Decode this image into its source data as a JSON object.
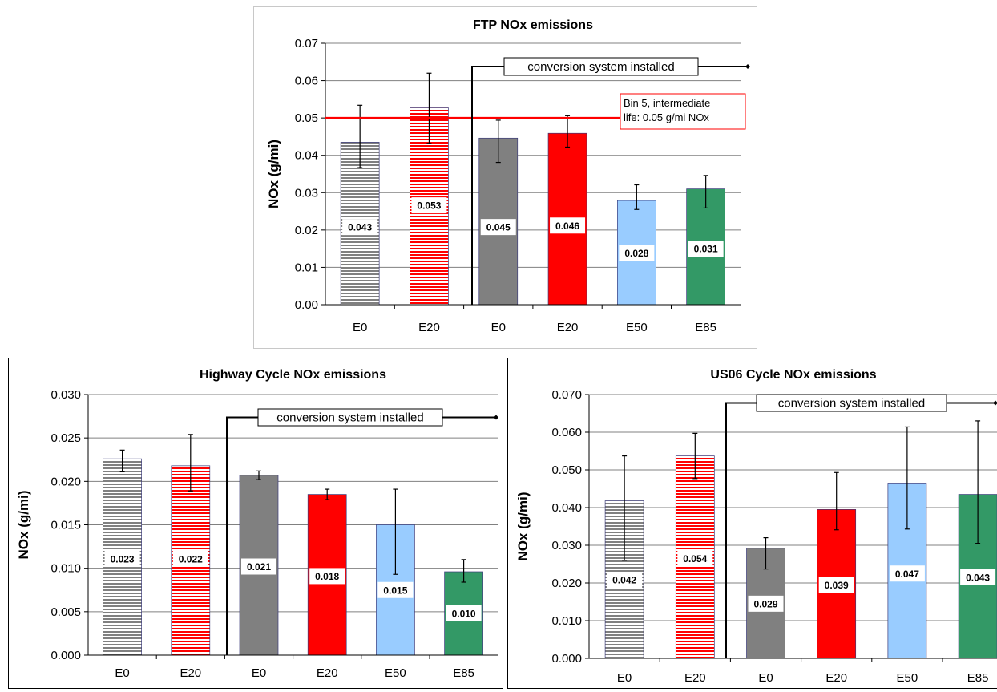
{
  "colors": {
    "gray": "#808080",
    "red": "#ff0000",
    "lightblue": "#99ccff",
    "green": "#339966",
    "stripe_white": "#ffffff",
    "grid": "#808080",
    "limit_line": "#ff0000"
  },
  "chart_data": [
    {
      "type": "bar",
      "title": "FTP NOx emissions",
      "ylabel": "NOx (g/mi)",
      "xlabel": "",
      "ylim": [
        0,
        0.07
      ],
      "yticks": [
        0,
        0.01,
        0.02,
        0.03,
        0.04,
        0.05,
        0.06,
        0.07
      ],
      "ytick_labels": [
        "0.00",
        "0.01",
        "0.02",
        "0.03",
        "0.04",
        "0.05",
        "0.06",
        "0.07"
      ],
      "grid": true,
      "categories": [
        "E0",
        "E20",
        "E0",
        "E20",
        "E50",
        "E85"
      ],
      "values": [
        0.0435,
        0.0527,
        0.0446,
        0.0459,
        0.0279,
        0.031
      ],
      "value_labels": [
        "0.043",
        "0.053",
        "0.045",
        "0.046",
        "0.028",
        "0.031"
      ],
      "errors": [
        [
          0.0367,
          0.0534
        ],
        [
          0.0432,
          0.062
        ],
        [
          0.0381,
          0.0494
        ],
        [
          0.0422,
          0.0506
        ],
        [
          0.0255,
          0.0321
        ],
        [
          0.0259,
          0.0346
        ]
      ],
      "label_y": [
        0.0208,
        0.0266,
        0.0208,
        0.0212,
        0.0138,
        0.015
      ],
      "bar_colors": [
        "gray",
        "red",
        "gray",
        "red",
        "lightblue",
        "green"
      ],
      "bar_patterns": [
        "stripe",
        "stripe",
        "solid",
        "solid",
        "solid",
        "solid"
      ],
      "annotation": "conversion system installed",
      "reference_line": {
        "value": 0.05,
        "label_lines": [
          "Bin 5, intermediate",
          "life: 0.05 g/mi NOx"
        ]
      }
    },
    {
      "type": "bar",
      "title": "Highway Cycle NOx emissions",
      "ylabel": "NOx (g/mi)",
      "xlabel": "",
      "ylim": [
        0,
        0.03
      ],
      "yticks": [
        0,
        0.005,
        0.01,
        0.015,
        0.02,
        0.025,
        0.03
      ],
      "ytick_labels": [
        "0.000",
        "0.005",
        "0.010",
        "0.015",
        "0.020",
        "0.025",
        "0.030"
      ],
      "grid": true,
      "categories": [
        "E0",
        "E20",
        "E0",
        "E20",
        "E50",
        "E85"
      ],
      "values": [
        0.0226,
        0.0218,
        0.0207,
        0.0185,
        0.015,
        0.0096
      ],
      "value_labels": [
        "0.023",
        "0.022",
        "0.021",
        "0.018",
        "0.015",
        "0.010"
      ],
      "errors": [
        [
          0.0211,
          0.0236
        ],
        [
          0.0189,
          0.0254
        ],
        [
          0.0202,
          0.0212
        ],
        [
          0.0179,
          0.0191
        ],
        [
          0.0093,
          0.0191
        ],
        [
          0.0084,
          0.011
        ]
      ],
      "label_y": [
        0.0111,
        0.0111,
        0.0102,
        0.0091,
        0.0075,
        0.0048
      ],
      "bar_colors": [
        "gray",
        "red",
        "gray",
        "red",
        "lightblue",
        "green"
      ],
      "bar_patterns": [
        "stripe",
        "stripe",
        "solid",
        "solid",
        "solid",
        "solid"
      ],
      "annotation": "conversion system installed"
    },
    {
      "type": "bar",
      "title": "US06 Cycle NOx emissions",
      "ylabel": "NOx (g/mi)",
      "xlabel": "",
      "ylim": [
        0,
        0.07
      ],
      "yticks": [
        0,
        0.01,
        0.02,
        0.03,
        0.04,
        0.05,
        0.06,
        0.07
      ],
      "ytick_labels": [
        "0.000",
        "0.010",
        "0.020",
        "0.030",
        "0.040",
        "0.050",
        "0.060",
        "0.070"
      ],
      "grid": true,
      "categories": [
        "E0",
        "E20",
        "E0",
        "E20",
        "E50",
        "E85"
      ],
      "values": [
        0.0418,
        0.0537,
        0.0292,
        0.0395,
        0.0465,
        0.0435
      ],
      "value_labels": [
        "0.042",
        "0.054",
        "0.029",
        "0.039",
        "0.047",
        "0.043"
      ],
      "errors": [
        [
          0.026,
          0.0537
        ],
        [
          0.0477,
          0.0597
        ],
        [
          0.0237,
          0.032
        ],
        [
          0.0341,
          0.0493
        ],
        [
          0.0343,
          0.0614
        ],
        [
          0.0305,
          0.063
        ]
      ],
      "label_y": [
        0.0208,
        0.0265,
        0.0145,
        0.0195,
        0.0225,
        0.0215
      ],
      "bar_colors": [
        "gray",
        "red",
        "gray",
        "red",
        "lightblue",
        "green"
      ],
      "bar_patterns": [
        "stripe",
        "stripe",
        "solid",
        "solid",
        "solid",
        "solid"
      ],
      "annotation": "conversion system installed"
    }
  ]
}
